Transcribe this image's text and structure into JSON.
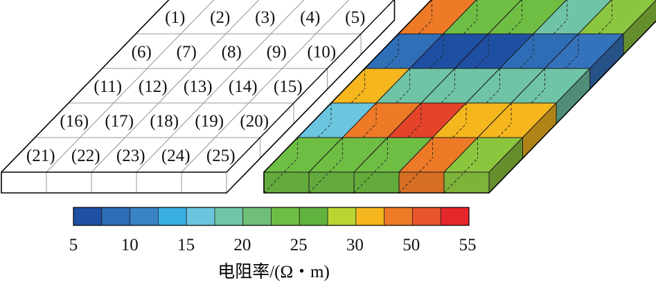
{
  "grid": {
    "rows": 5,
    "cols": 5,
    "cell_labels": [
      [
        "(1)",
        "(2)",
        "(3)",
        "(4)",
        "(5)"
      ],
      [
        "(6)",
        "(7)",
        "(8)",
        "(9)",
        "(10)"
      ],
      [
        "(11)",
        "(12)",
        "(13)",
        "(14)",
        "(15)"
      ],
      [
        "(16)",
        "(17)",
        "(18)",
        "(19)",
        "(20)"
      ],
      [
        "(21)",
        "(22)",
        "(23)",
        "(24)",
        "(25)"
      ]
    ]
  },
  "resistivity_map": {
    "cell_colors": [
      [
        "#EE7A27",
        "#6FBE44",
        "#6FBE44",
        "#6FC4A5",
        "#8CC63F"
      ],
      [
        "#2F6FB8",
        "#1E4FA2",
        "#1E4FA2",
        "#2E6DB6",
        "#3572BC"
      ],
      [
        "#F5B61E",
        "#6FC4A5",
        "#6FC4A5",
        "#6FC4A5",
        "#6FC4A5"
      ],
      [
        "#6CC5DE",
        "#EE7A27",
        "#E5432A",
        "#F5B61E",
        "#F5B61E"
      ],
      [
        "#6FBE44",
        "#6FBE44",
        "#6FBE44",
        "#EE7A27",
        "#8CC63F"
      ]
    ]
  },
  "colorbar": {
    "colors": [
      "#1E4FA2",
      "#2E6DB6",
      "#3A82C6",
      "#38AEE3",
      "#6CC5DE",
      "#6FC4A5",
      "#6FBE78",
      "#6FBE44",
      "#61B33F",
      "#B9D532",
      "#F5B61E",
      "#EE7A27",
      "#E9552A",
      "#E5262A"
    ],
    "tick_labels": [
      "5",
      "10",
      "15",
      "20",
      "25",
      "30",
      "50",
      "55"
    ],
    "label": "电阻率/(Ω・m)"
  }
}
